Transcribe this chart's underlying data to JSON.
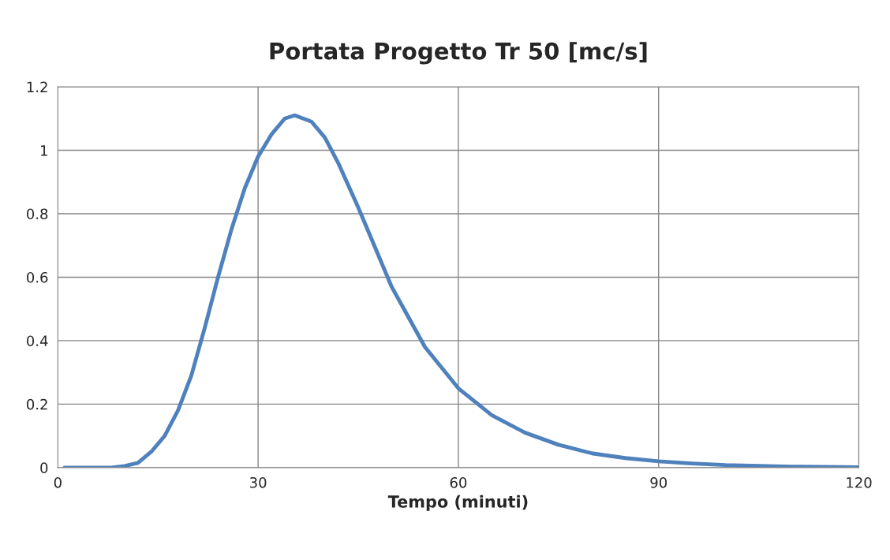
{
  "chart_data": {
    "type": "line",
    "title": "Portata Progetto Tr 50 [mc/s]",
    "xlabel": "Tempo (minuti)",
    "x": [
      1,
      5,
      8,
      10,
      12,
      14,
      16,
      18,
      20,
      22,
      24,
      26,
      28,
      30,
      32,
      34,
      35.5,
      38,
      40,
      42,
      45,
      48,
      50,
      55,
      60,
      65,
      70,
      75,
      80,
      85,
      90,
      95,
      100,
      110,
      120
    ],
    "series": [
      {
        "color": "#4f81bd",
        "values": [
          0,
          0,
          0,
          0.005,
          0.015,
          0.05,
          0.1,
          0.18,
          0.29,
          0.44,
          0.6,
          0.75,
          0.88,
          0.98,
          1.05,
          1.1,
          1.11,
          1.09,
          1.04,
          0.96,
          0.82,
          0.67,
          0.57,
          0.38,
          0.25,
          0.165,
          0.11,
          0.072,
          0.045,
          0.03,
          0.02,
          0.013,
          0.008,
          0.003,
          0.001
        ]
      }
    ],
    "xlim": [
      0,
      120
    ],
    "xticks": [
      0,
      30,
      60,
      90,
      120
    ],
    "ylim": [
      0,
      1.2
    ],
    "yticks": [
      0,
      0.2,
      0.4,
      0.6,
      0.8,
      1,
      1.2
    ],
    "grid": true,
    "marker": "none",
    "line_style": "solid"
  }
}
